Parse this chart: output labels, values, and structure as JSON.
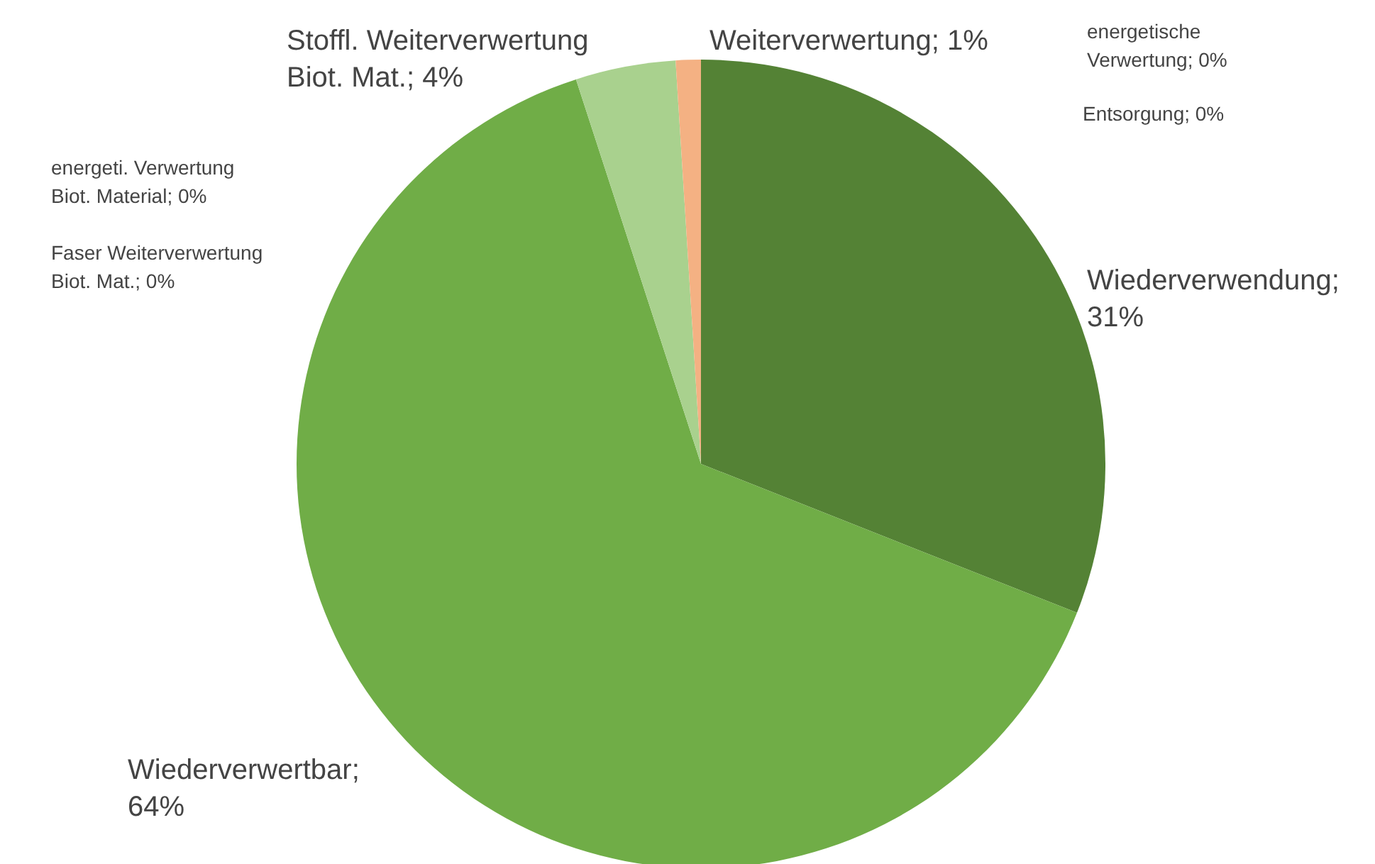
{
  "chart_data": {
    "type": "pie",
    "categories": [
      "Wiederverwendung",
      "Entsorgung",
      "energetische Verwertung",
      "Wiederverwertbar",
      "Faser Weiterverwertung Biot. Mat.",
      "energeti. Verwertung Biot. Material",
      "Stoffl. Weiterverwertung Biot. Mat.",
      "Weiterverwertung"
    ],
    "values": [
      31,
      0,
      0,
      64,
      0,
      0,
      4,
      1
    ],
    "value_labels": [
      "; 31%",
      "; 0%",
      "; 0%",
      "; 64%",
      "; 0%",
      "; 0%",
      "; 4%",
      "; 1%"
    ],
    "colors": [
      "#548235",
      "#c55a11",
      "#ffc000",
      "#70ad47",
      "#375623",
      "#a9d18e",
      "#a9d18e",
      "#f4b183"
    ],
    "legend": false
  }
}
